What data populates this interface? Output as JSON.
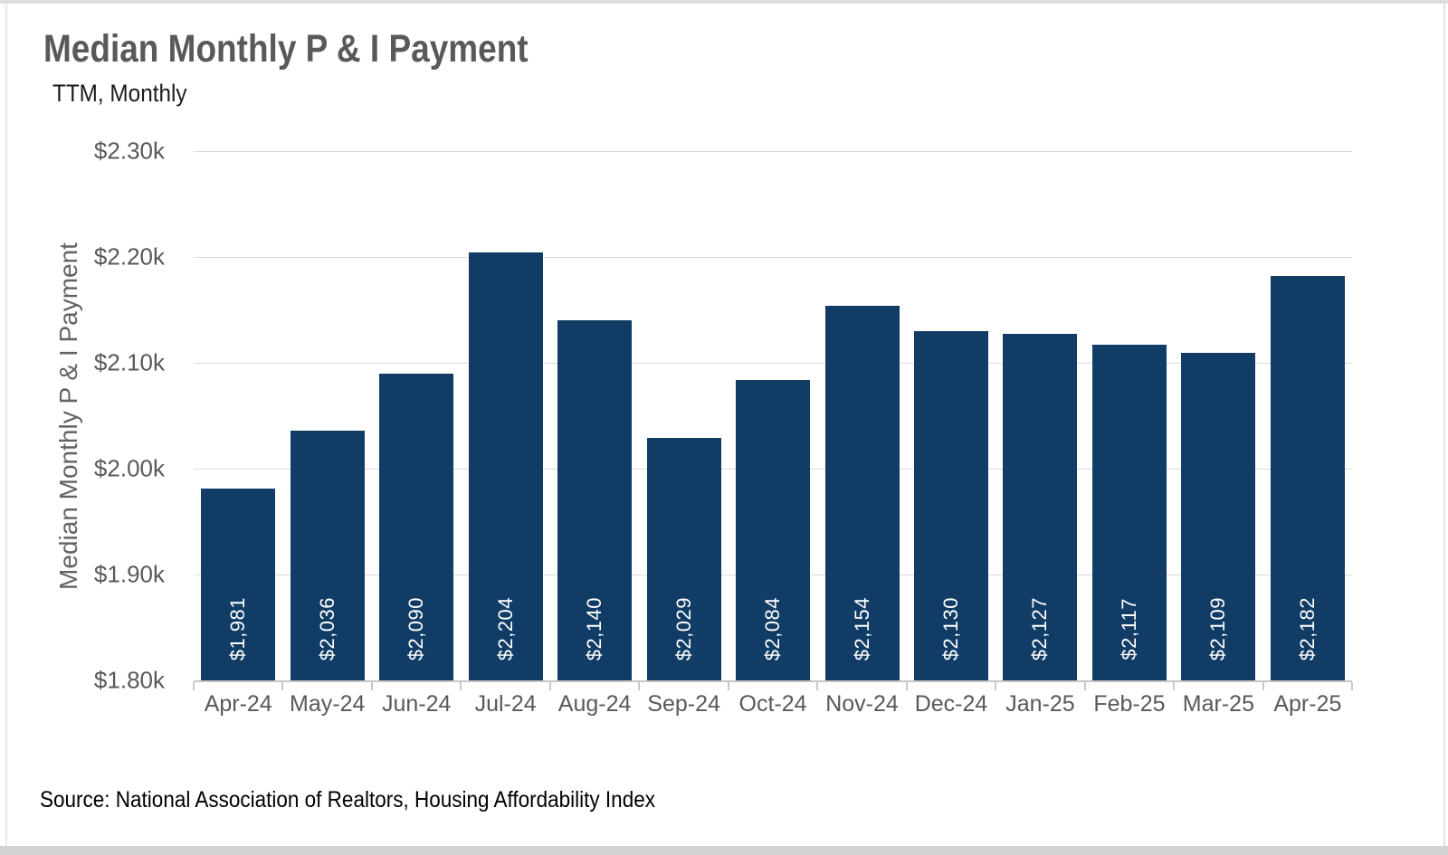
{
  "header": {
    "title": "Median Monthly P & I Payment",
    "subtitle": "TTM, Monthly"
  },
  "footer": {
    "source": "Source: National Association of Realtors, Housing Affordability Index"
  },
  "chart_data": {
    "type": "bar",
    "title": "Median Monthly P & I Payment",
    "subtitle": "TTM, Monthly",
    "xlabel": "",
    "ylabel": "Median Monthly P & I Payment",
    "categories": [
      "Apr-24",
      "May-24",
      "Jun-24",
      "Jul-24",
      "Aug-24",
      "Sep-24",
      "Oct-24",
      "Nov-24",
      "Dec-24",
      "Jan-25",
      "Feb-25",
      "Mar-25",
      "Apr-25"
    ],
    "values": [
      1981,
      2036,
      2090,
      2204,
      2140,
      2029,
      2084,
      2154,
      2130,
      2127,
      2117,
      2109,
      2182
    ],
    "bar_labels": [
      "$1,981",
      "$2,036",
      "$2,090",
      "$2,204",
      "$2,140",
      "$2,029",
      "$2,084",
      "$2,154",
      "$2,130",
      "$2,127",
      "$2,117",
      "$2,109",
      "$2,182"
    ],
    "ylim": [
      1800,
      2300
    ],
    "ytick_labels": [
      "$2.30k",
      "$2.20k",
      "$2.10k",
      "$2.00k",
      "$1.90k",
      "$1.80k"
    ],
    "grid": true,
    "legend": false,
    "colors": {
      "bar": "#113C65",
      "bar_label": "#FFFFFF",
      "title": "#595959",
      "axis_text": "#595959",
      "gridline": "#DCDCDC",
      "axis_line": "#C6C6C6"
    },
    "source": "Source: National Association of Realtors, Housing Affordability Index"
  }
}
